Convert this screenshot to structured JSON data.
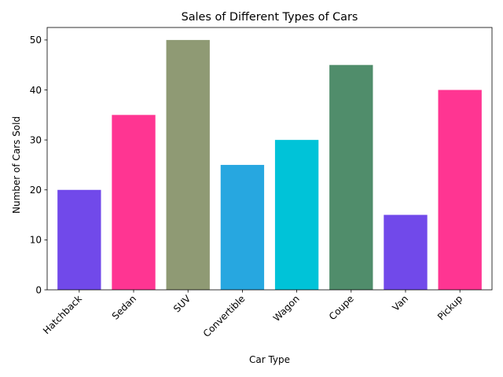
{
  "chart_data": {
    "type": "bar",
    "title": "Sales of Different Types of Cars",
    "xlabel": "Car Type",
    "ylabel": "Number of Cars Sold",
    "categories": [
      "Hatchback",
      "Sedan",
      "SUV",
      "Convertible",
      "Wagon",
      "Coupe",
      "Van",
      "Pickup"
    ],
    "values": [
      20,
      35,
      50,
      25,
      30,
      45,
      15,
      40
    ],
    "colors": [
      "#7149EA",
      "#FF3592",
      "#8F9A74",
      "#27A7E0",
      "#00C3D8",
      "#508D6B",
      "#7149EA",
      "#FF3592"
    ],
    "ylim": [
      0,
      52.5
    ],
    "yticks": [
      "0",
      "10",
      "20",
      "30",
      "40",
      "50"
    ],
    "ytick_values": [
      0,
      10,
      20,
      30,
      40,
      50
    ],
    "grid": false,
    "legend": "none",
    "xtick_rotation": 45
  }
}
